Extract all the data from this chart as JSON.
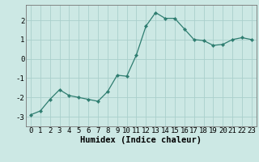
{
  "x": [
    0,
    1,
    2,
    3,
    4,
    5,
    6,
    7,
    8,
    9,
    10,
    11,
    12,
    13,
    14,
    15,
    16,
    17,
    18,
    19,
    20,
    21,
    22,
    23
  ],
  "y": [
    -2.9,
    -2.7,
    -2.1,
    -1.6,
    -1.9,
    -2.0,
    -2.1,
    -2.2,
    -1.7,
    -0.85,
    -0.9,
    0.2,
    1.7,
    2.4,
    2.1,
    2.1,
    1.55,
    1.0,
    0.95,
    0.7,
    0.75,
    1.0,
    1.1,
    1.0
  ],
  "line_color": "#2e7d70",
  "marker": "D",
  "marker_size": 2.2,
  "bg_color": "#cce8e4",
  "grid_color": "#aacfcc",
  "xlabel": "Humidex (Indice chaleur)",
  "xlabel_fontsize": 7.5,
  "tick_fontsize": 6.5,
  "ylim": [
    -3.5,
    2.8
  ],
  "xlim": [
    -0.5,
    23.5
  ],
  "yticks": [
    -3,
    -2,
    -1,
    0,
    1,
    2
  ],
  "xticks": [
    0,
    1,
    2,
    3,
    4,
    5,
    6,
    7,
    8,
    9,
    10,
    11,
    12,
    13,
    14,
    15,
    16,
    17,
    18,
    19,
    20,
    21,
    22,
    23
  ]
}
